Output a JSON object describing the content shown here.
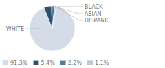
{
  "chart_data": {
    "type": "pie",
    "categories": [
      "WHITE",
      "BLACK",
      "ASIAN",
      "HISPANIC"
    ],
    "values": [
      91.3,
      5.4,
      2.2,
      1.1
    ],
    "value_labels": [
      "91.3%",
      "5.4%",
      "2.2%",
      "1.1%"
    ],
    "colors": [
      "#d4dce8",
      "#2d5070",
      "#4f7fa0",
      "#b8ccd8"
    ],
    "legend": "lower left"
  }
}
